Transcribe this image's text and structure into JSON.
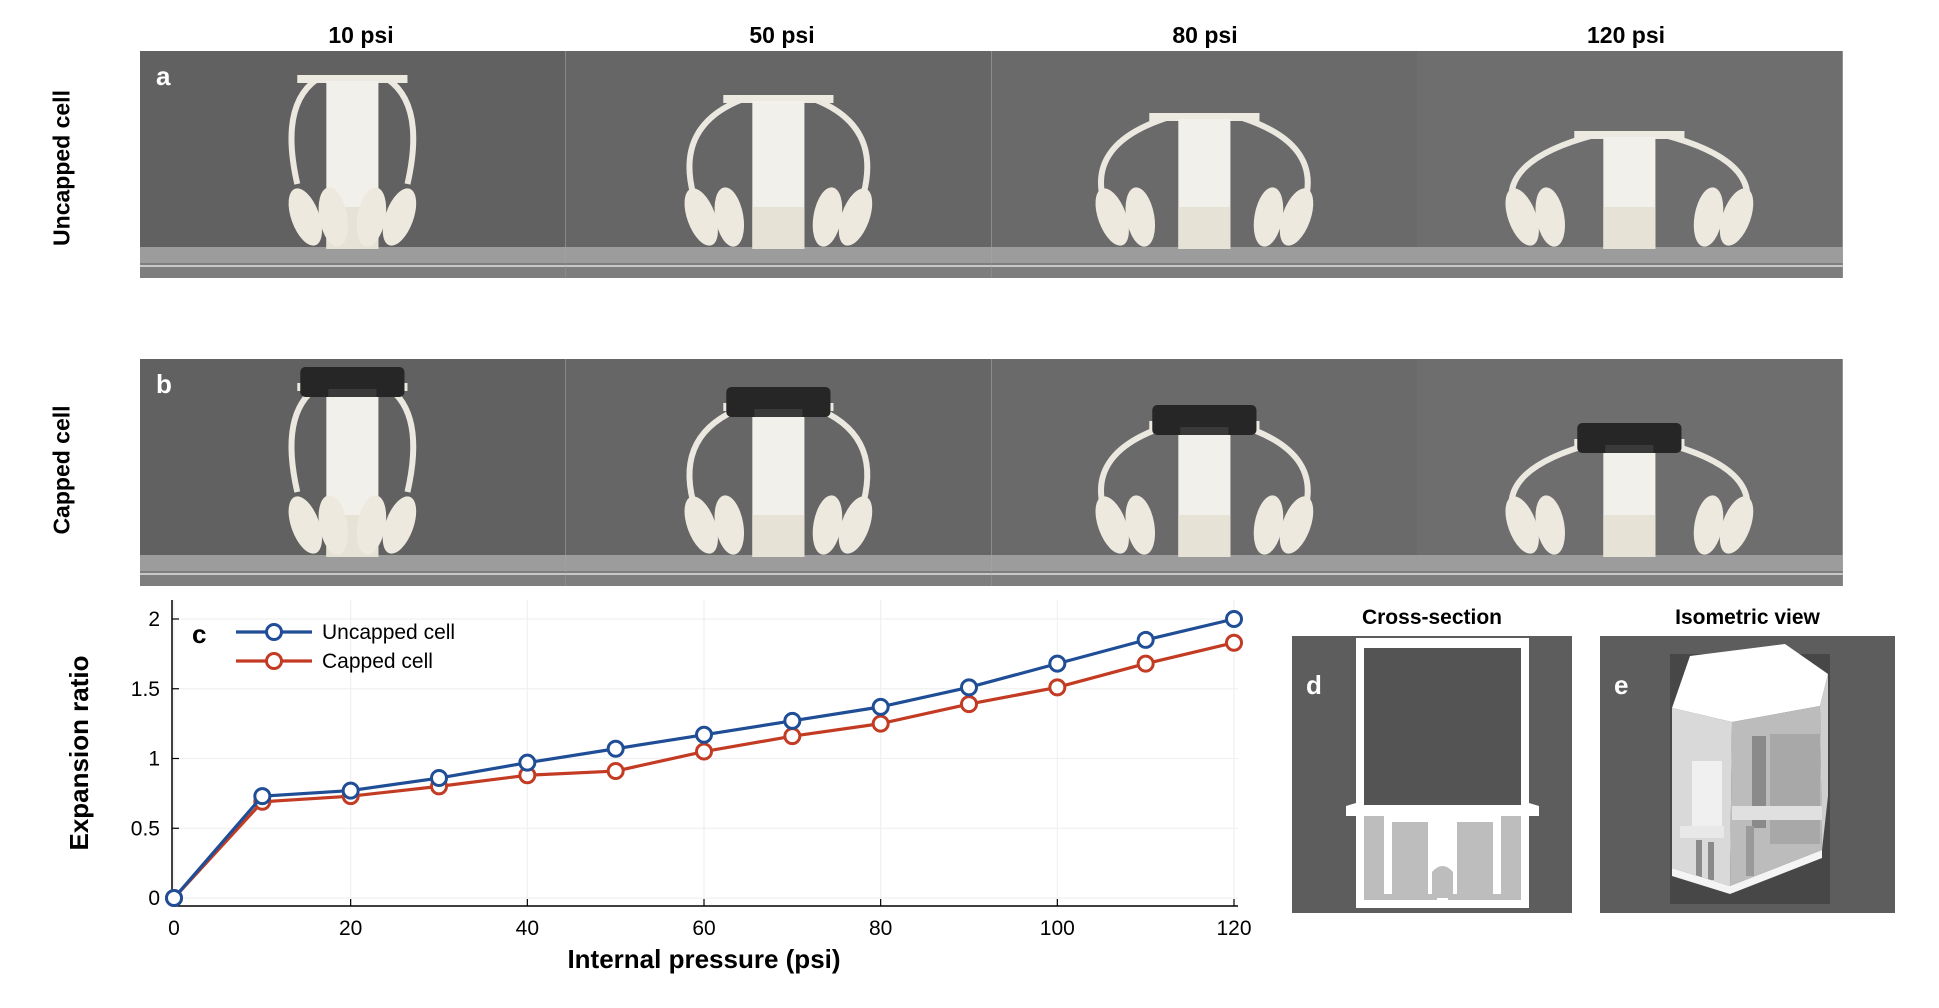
{
  "pressure_labels": [
    "10 psi",
    "50 psi",
    "80 psi",
    "120 psi"
  ],
  "rows": {
    "a": {
      "letter": "a",
      "label": "Uncapped cell"
    },
    "b": {
      "letter": "b",
      "label": "Capped cell"
    }
  },
  "views": {
    "d": {
      "letter": "d",
      "title": "Cross-section"
    },
    "e": {
      "letter": "e",
      "title": "Isometric view"
    }
  },
  "chart_data": {
    "type": "line",
    "panel_letter": "c",
    "xlabel": "Internal pressure (psi)",
    "ylabel": "Expansion ratio",
    "xlim": [
      0,
      120
    ],
    "ylim": [
      0,
      2
    ],
    "xticks": [
      0,
      20,
      40,
      60,
      80,
      100,
      120
    ],
    "yticks": [
      0,
      0.5,
      1,
      1.5,
      2
    ],
    "ytick_labels": [
      "0",
      "0.5",
      "1",
      "1.5",
      "2"
    ],
    "x": [
      0,
      10,
      20,
      30,
      40,
      50,
      60,
      70,
      80,
      90,
      100,
      110,
      120
    ],
    "series": [
      {
        "name": "Uncapped cell",
        "color": "#1f4e96",
        "values": [
          0,
          0.73,
          0.77,
          0.86,
          0.97,
          1.07,
          1.17,
          1.27,
          1.37,
          1.51,
          1.68,
          1.85,
          2.0
        ]
      },
      {
        "name": "Capped cell",
        "color": "#c23b22",
        "values": [
          0,
          0.69,
          0.73,
          0.8,
          0.88,
          0.91,
          1.05,
          1.16,
          1.25,
          1.39,
          1.51,
          1.68,
          1.83
        ]
      }
    ],
    "grid": true,
    "legend": "top-left",
    "marker": "open-circle"
  }
}
